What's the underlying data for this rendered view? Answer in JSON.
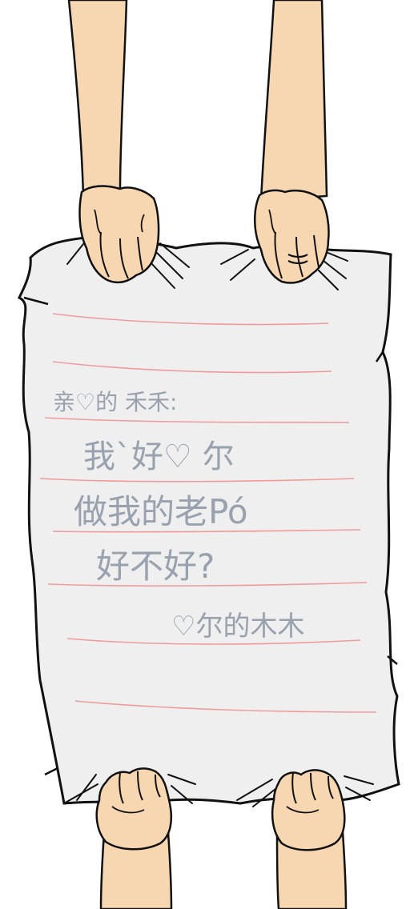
{
  "note": {
    "greeting": "亲♡的 禾禾:",
    "lines": [
      "我`好♡ 尔",
      "做我的老Pó",
      "好不好?"
    ],
    "signature": "♡尔的木木"
  },
  "colors": {
    "skin": "#f7d7b2",
    "paper": "#efefef",
    "rule": "#ef9b9b",
    "ink": "#98a2ae",
    "outline": "#111111"
  }
}
